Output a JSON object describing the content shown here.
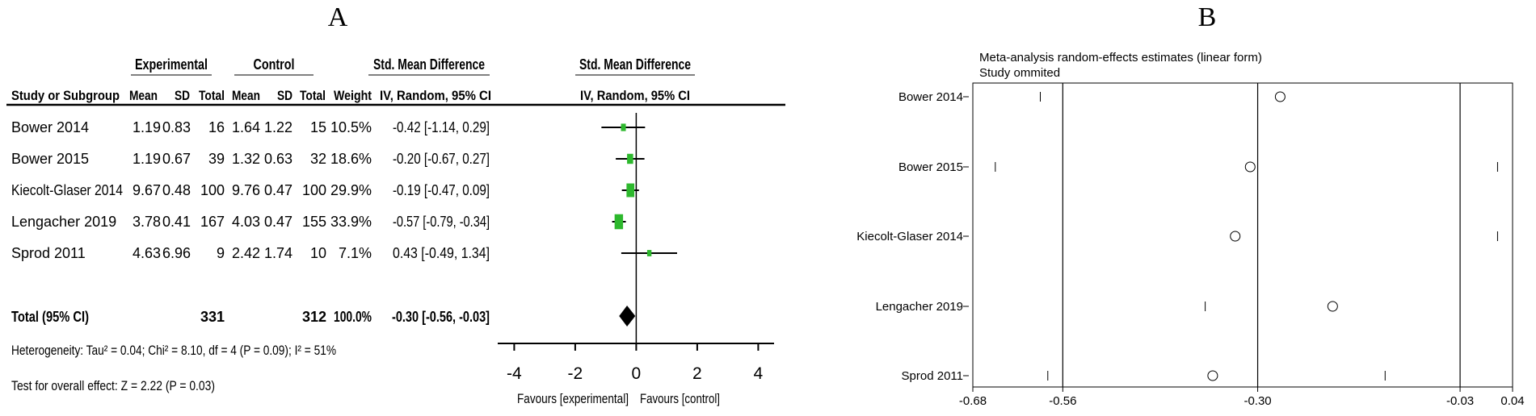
{
  "panel_a": {
    "label": "A",
    "header_groups": {
      "experimental": "Experimental",
      "control": "Control",
      "smd": "Std. Mean Difference",
      "plot_smd": "Std. Mean Difference"
    },
    "columns": [
      "Study or Subgroup",
      "Mean",
      "SD",
      "Total",
      "Mean",
      "SD",
      "Total",
      "Weight",
      "IV, Random, 95% CI"
    ],
    "plot_method": "IV, Random, 95% CI",
    "rows": [
      {
        "study": "Bower 2014",
        "exp_mean": "1.19",
        "exp_sd": "0.83",
        "exp_total": "16",
        "ctl_mean": "1.64",
        "ctl_sd": "1.22",
        "ctl_total": "15",
        "weight": "10.5%",
        "ci_text": "-0.42 [-1.14, 0.29]"
      },
      {
        "study": "Bower 2015",
        "exp_mean": "1.19",
        "exp_sd": "0.67",
        "exp_total": "39",
        "ctl_mean": "1.32",
        "ctl_sd": "0.63",
        "ctl_total": "32",
        "weight": "18.6%",
        "ci_text": "-0.20 [-0.67, 0.27]"
      },
      {
        "study": "Kiecolt-Glaser 2014",
        "exp_mean": "9.67",
        "exp_sd": "0.48",
        "exp_total": "100",
        "ctl_mean": "9.76",
        "ctl_sd": "0.47",
        "ctl_total": "100",
        "weight": "29.9%",
        "ci_text": "-0.19 [-0.47, 0.09]"
      },
      {
        "study": "Lengacher  2019",
        "exp_mean": "3.78",
        "exp_sd": "0.41",
        "exp_total": "167",
        "ctl_mean": "4.03",
        "ctl_sd": "0.47",
        "ctl_total": "155",
        "weight": "33.9%",
        "ci_text": "-0.57 [-0.79, -0.34]"
      },
      {
        "study": "Sprod  2011",
        "exp_mean": "4.63",
        "exp_sd": "6.96",
        "exp_total": "9",
        "ctl_mean": "2.42",
        "ctl_sd": "1.74",
        "ctl_total": "10",
        "weight": "7.1%",
        "ci_text": "0.43 [-0.49, 1.34]"
      }
    ],
    "total": {
      "label": "Total (95% CI)",
      "exp_total": "331",
      "ctl_total": "312",
      "weight": "100.0%",
      "ci_text": "-0.30 [-0.56, -0.03]"
    },
    "heterogeneity": "Heterogeneity: Tau² = 0.04; Chi² = 8.10, df = 4 (P = 0.09); I² = 51%",
    "overall_effect": "Test for overall effect: Z = 2.22 (P = 0.03)",
    "axis_ticks": [
      "-4",
      "-2",
      "0",
      "2",
      "4"
    ],
    "favours_left": "Favours [experimental]",
    "favours_right": "Favours [control]"
  },
  "panel_b": {
    "label": "B",
    "title_line1": "Meta-analysis random-effects estimates (linear form)",
    "title_line2": "Study ommited",
    "tick_labels": [
      "-0.68",
      "-0.56",
      "-0.30",
      "-0.03",
      "0.04"
    ]
  },
  "colors": {
    "marker": "#2db82d",
    "ink": "#000000"
  },
  "chart_data": [
    {
      "type": "forest",
      "title": "",
      "xlabel": "",
      "xlim": [
        -4,
        4
      ],
      "x_ticks": [
        -4,
        -2,
        0,
        2,
        4
      ],
      "studies": [
        {
          "name": "Bower 2014",
          "smd": -0.42,
          "ci_low": -1.14,
          "ci_high": 0.29,
          "weight": 10.5
        },
        {
          "name": "Bower 2015",
          "smd": -0.2,
          "ci_low": -0.67,
          "ci_high": 0.27,
          "weight": 18.6
        },
        {
          "name": "Kiecolt-Glaser 2014",
          "smd": -0.19,
          "ci_low": -0.47,
          "ci_high": 0.09,
          "weight": 29.9
        },
        {
          "name": "Lengacher  2019",
          "smd": -0.57,
          "ci_low": -0.79,
          "ci_high": -0.34,
          "weight": 33.9
        },
        {
          "name": "Sprod  2011",
          "smd": 0.43,
          "ci_low": -0.49,
          "ci_high": 1.34,
          "weight": 7.1
        }
      ],
      "pooled": {
        "smd": -0.3,
        "ci_low": -0.56,
        "ci_high": -0.03
      }
    },
    {
      "type": "scatter",
      "title": "Meta-analysis random-effects estimates (linear form)",
      "subtitle": "Study ommited",
      "xlim": [
        -0.68,
        0.04
      ],
      "x_ticks": [
        -0.68,
        -0.56,
        -0.3,
        -0.03,
        0.04
      ],
      "reference_lines": [
        -0.56,
        -0.3,
        -0.03
      ],
      "studies": [
        {
          "name": "Bower 2014",
          "estimate": -0.27,
          "ci_low": -0.59,
          "ci_high": 0.04
        },
        {
          "name": "Bower 2015",
          "estimate": -0.31,
          "ci_low": -0.65,
          "ci_high": 0.02
        },
        {
          "name": "Kiecolt-Glaser 2014",
          "estimate": -0.33,
          "ci_low": -0.68,
          "ci_high": 0.02
        },
        {
          "name": "Lengacher  2019",
          "estimate": -0.2,
          "ci_low": -0.37,
          "ci_high": 0.04
        },
        {
          "name": "Sprod  2011",
          "estimate": -0.36,
          "ci_low": -0.58,
          "ci_high": -0.13
        }
      ]
    }
  ]
}
